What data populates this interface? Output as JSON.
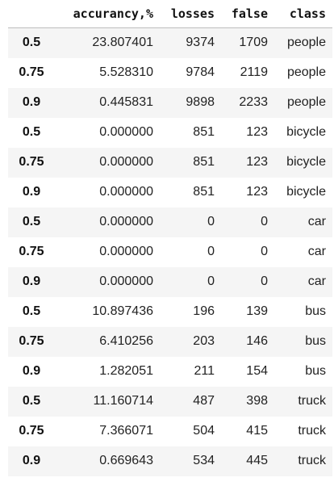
{
  "table": {
    "columns": [
      "",
      "accurancy,%",
      "losses",
      "false",
      "class"
    ],
    "rows": [
      {
        "idx": "0.5",
        "acc": "23.807401",
        "losses": "9374",
        "false": "1709",
        "class": "people"
      },
      {
        "idx": "0.75",
        "acc": "5.528310",
        "losses": "9784",
        "false": "2119",
        "class": "people"
      },
      {
        "idx": "0.9",
        "acc": "0.445831",
        "losses": "9898",
        "false": "2233",
        "class": "people"
      },
      {
        "idx": "0.5",
        "acc": "0.000000",
        "losses": "851",
        "false": "123",
        "class": "bicycle"
      },
      {
        "idx": "0.75",
        "acc": "0.000000",
        "losses": "851",
        "false": "123",
        "class": "bicycle"
      },
      {
        "idx": "0.9",
        "acc": "0.000000",
        "losses": "851",
        "false": "123",
        "class": "bicycle"
      },
      {
        "idx": "0.5",
        "acc": "0.000000",
        "losses": "0",
        "false": "0",
        "class": "car"
      },
      {
        "idx": "0.75",
        "acc": "0.000000",
        "losses": "0",
        "false": "0",
        "class": "car"
      },
      {
        "idx": "0.9",
        "acc": "0.000000",
        "losses": "0",
        "false": "0",
        "class": "car"
      },
      {
        "idx": "0.5",
        "acc": "10.897436",
        "losses": "196",
        "false": "139",
        "class": "bus"
      },
      {
        "idx": "0.75",
        "acc": "6.410256",
        "losses": "203",
        "false": "146",
        "class": "bus"
      },
      {
        "idx": "0.9",
        "acc": "1.282051",
        "losses": "211",
        "false": "154",
        "class": "bus"
      },
      {
        "idx": "0.5",
        "acc": "11.160714",
        "losses": "487",
        "false": "398",
        "class": "truck"
      },
      {
        "idx": "0.75",
        "acc": "7.366071",
        "losses": "504",
        "false": "415",
        "class": "truck"
      },
      {
        "idx": "0.9",
        "acc": "0.669643",
        "losses": "534",
        "false": "445",
        "class": "truck"
      }
    ]
  }
}
